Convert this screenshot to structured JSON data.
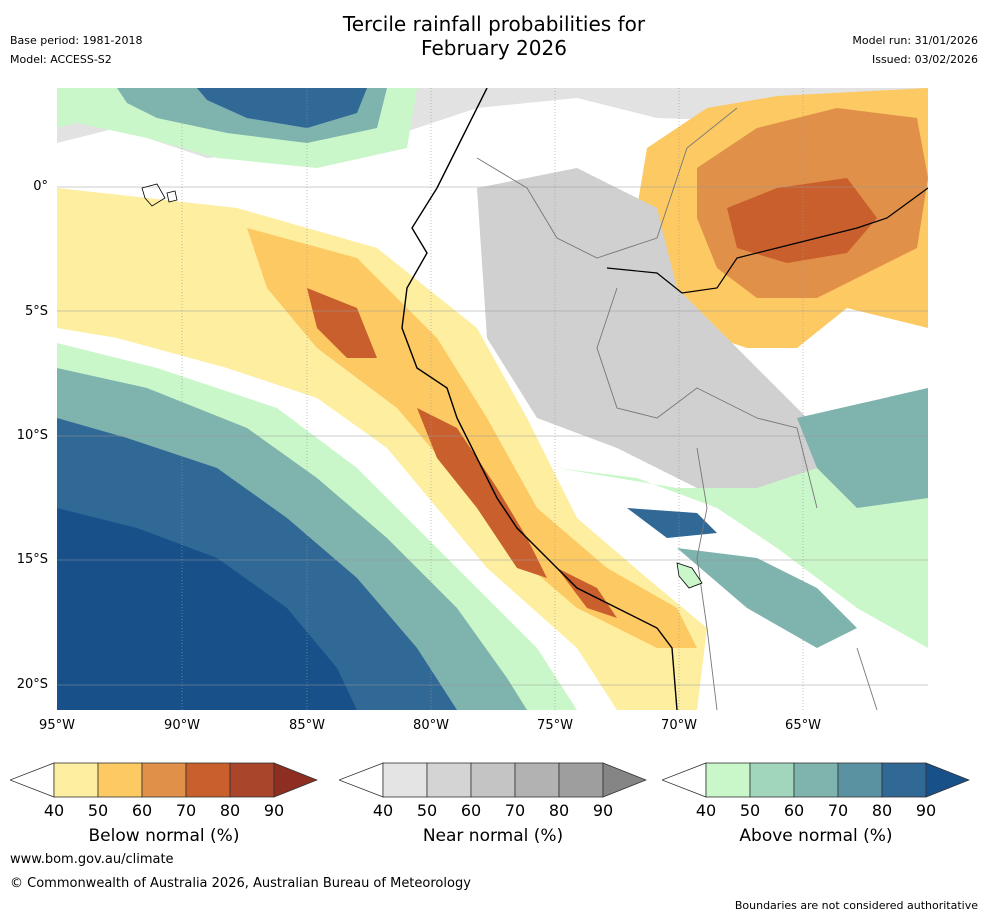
{
  "title_line1": "Tercile rainfall probabilities for",
  "title_line2": "February 2026",
  "base_period": "Base period: 1981-2018",
  "model": "Model: ACCESS-S2",
  "model_run": "Model run: 31/01/2026",
  "issued": "Issued: 03/02/2026",
  "lat_labels": [
    "0°",
    "5°S",
    "10°S",
    "15°S",
    "20°S"
  ],
  "lon_labels": [
    "95°W",
    "90°W",
    "85°W",
    "80°W",
    "75°W",
    "70°W",
    "65°W"
  ],
  "colorbars": [
    {
      "label": "Below normal (%)",
      "ticks": [
        "40",
        "50",
        "60",
        "70",
        "80",
        "90"
      ],
      "colors": [
        "#fdeea0",
        "#fcc963",
        "#e09048",
        "#c95f2c",
        "#a8452a",
        "#8e2e20"
      ]
    },
    {
      "label": "Near normal (%)",
      "ticks": [
        "40",
        "50",
        "60",
        "70",
        "80",
        "90"
      ],
      "colors": [
        "#e4e4e4",
        "#d4d4d4",
        "#c4c4c4",
        "#b2b2b2",
        "#9e9e9e",
        "#858585"
      ]
    },
    {
      "label": "Above normal (%)",
      "ticks": [
        "40",
        "50",
        "60",
        "70",
        "80",
        "90"
      ],
      "colors": [
        "#c9f7c9",
        "#a1d6bd",
        "#7fb3ae",
        "#5a92a2",
        "#306896",
        "#18508a"
      ]
    }
  ],
  "website": "www.bom.gov.au/climate",
  "copyright": "© Commonwealth of Australia 2026, Australian Bureau of Meteorology",
  "disclaimer": "Boundaries are not considered authoritative"
}
